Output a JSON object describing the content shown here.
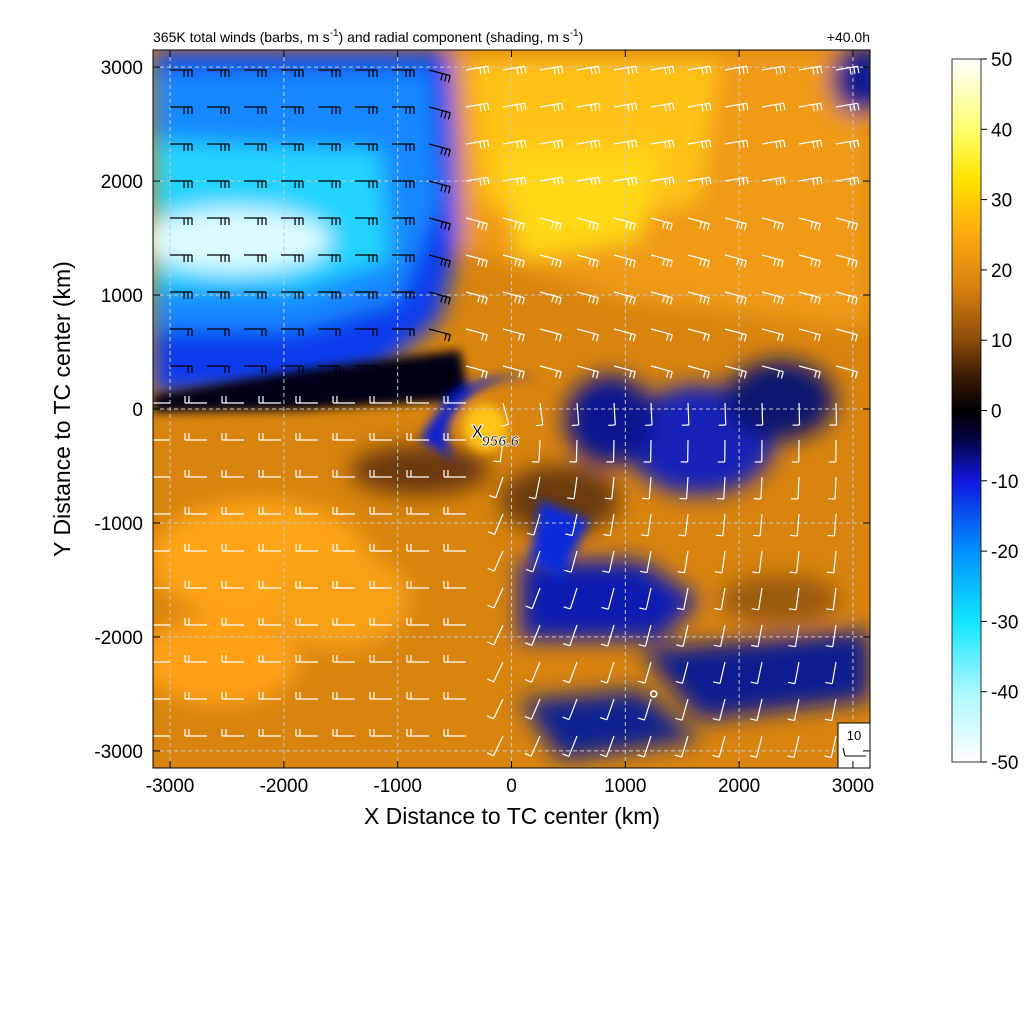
{
  "chart_data": {
    "type": "heatmap",
    "title_parts": {
      "a": "365K total winds (barbs, m s",
      "a_sup": "-1",
      "b": ") and radial component (shading, m s",
      "b_sup": "-1",
      "c": ")"
    },
    "time_label": "+40.0h",
    "xlabel": "X Distance to TC center (km)",
    "ylabel": "Y Distance to TC center (km)",
    "xlim": [
      -3150,
      3150
    ],
    "ylim": [
      -3150,
      3150
    ],
    "x_ticks": [
      -3000,
      -2000,
      -1000,
      0,
      1000,
      2000,
      3000
    ],
    "y_ticks": [
      -3000,
      -2000,
      -1000,
      0,
      1000,
      2000,
      3000
    ],
    "grid": true,
    "colorbar": {
      "range": [
        -50,
        50
      ],
      "ticks": [
        50,
        40,
        30,
        20,
        10,
        0,
        -10,
        -20,
        -30,
        -40,
        -50
      ],
      "stops": [
        {
          "v": -50,
          "c": "#ffffff"
        },
        {
          "v": -40,
          "c": "#aaf8ff"
        },
        {
          "v": -30,
          "c": "#10e6ff"
        },
        {
          "v": -20,
          "c": "#0090ff"
        },
        {
          "v": -10,
          "c": "#1018e0"
        },
        {
          "v": -4,
          "c": "#020440"
        },
        {
          "v": 0,
          "c": "#000000"
        },
        {
          "v": 5,
          "c": "#3c1c04"
        },
        {
          "v": 10,
          "c": "#8a4c08"
        },
        {
          "v": 17,
          "c": "#d47e10"
        },
        {
          "v": 25,
          "c": "#ffa810"
        },
        {
          "v": 33,
          "c": "#ffe400"
        },
        {
          "v": 40,
          "c": "#ffff70"
        },
        {
          "v": 50,
          "c": "#ffffff"
        }
      ]
    },
    "center_marker": {
      "x": -300,
      "y": -200,
      "symbol": "X",
      "label": "956.6"
    },
    "small_circle": {
      "x": 1250,
      "y": -2500
    },
    "reference_barb": {
      "label": "10"
    }
  }
}
